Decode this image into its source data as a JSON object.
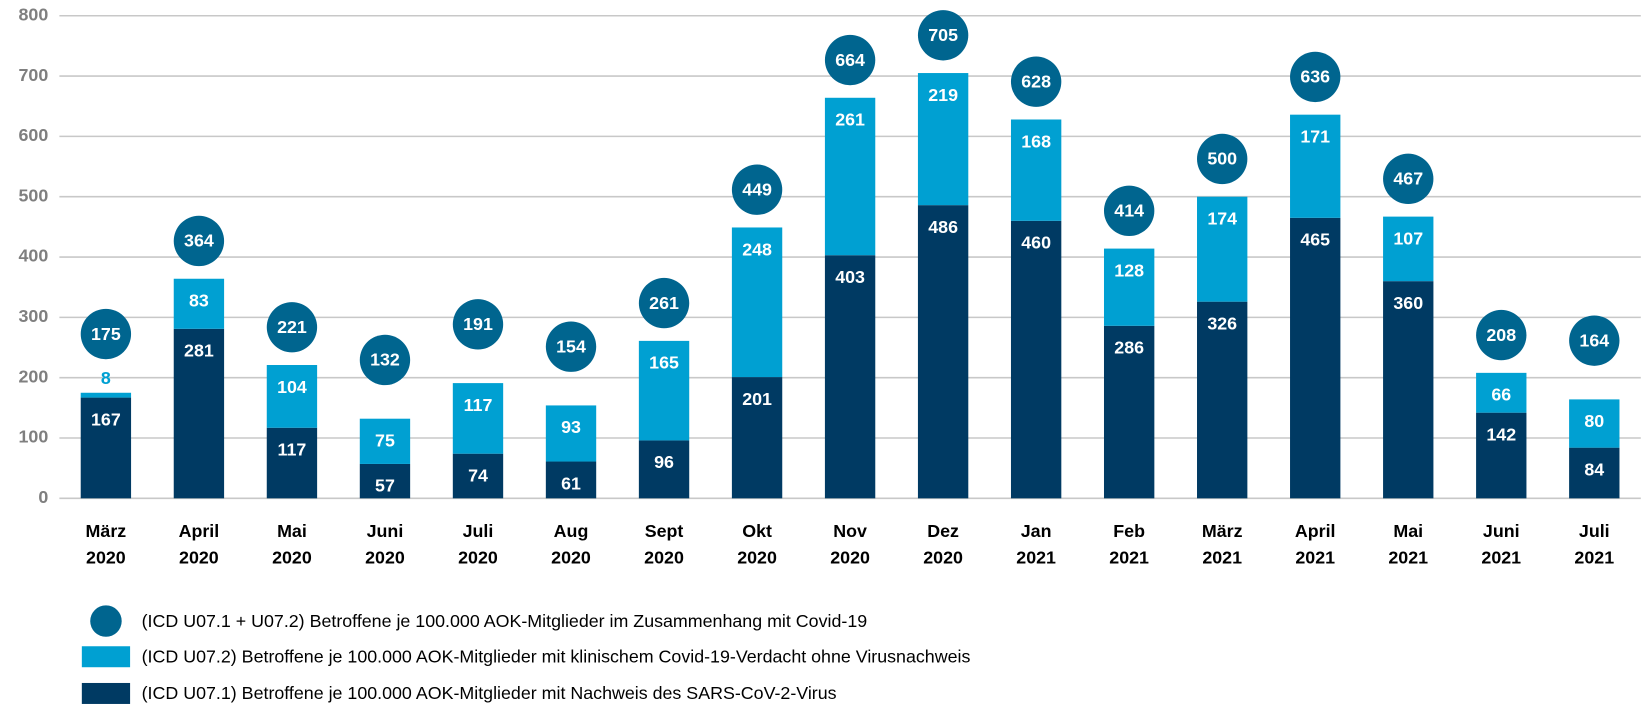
{
  "chart_data": {
    "type": "stacked_bar",
    "categories": [
      "März\n2020",
      "April\n2020",
      "Mai\n2020",
      "Juni\n2020",
      "Juli\n2020",
      "Aug\n2020",
      "Sept\n2020",
      "Okt\n2020",
      "Nov\n2020",
      "Dez\n2020",
      "Jan\n2021",
      "Feb\n2021",
      "März\n2021",
      "April\n2021",
      "Mai\n2021",
      "Juni\n2021",
      "Juli\n2021"
    ],
    "series": [
      {
        "name": "(ICD U07.1) Betroffene je 100.000 AOK-Mitglieder mit Nachweis des SARS-CoV-2-Virus",
        "color": "#003a63",
        "values": [
          167,
          281,
          117,
          57,
          74,
          61,
          96,
          201,
          403,
          486,
          460,
          286,
          326,
          465,
          360,
          142,
          84
        ]
      },
      {
        "name": "(ICD U07.2) Betroffene je 100.000 AOK-Mitglieder mit klinischem Covid-19-Verdacht ohne Virusnachweis",
        "color": "#00a0d2",
        "values": [
          8,
          83,
          104,
          75,
          117,
          93,
          165,
          248,
          261,
          219,
          168,
          128,
          174,
          171,
          107,
          66,
          80
        ]
      }
    ],
    "totals": {
      "name": "(ICD U07.1 + U07.2) Betroffene je 100.000 AOK-Mitglieder im Zusammenhang mit Covid-19",
      "color": "#00658f",
      "values": [
        175,
        364,
        221,
        132,
        191,
        154,
        261,
        449,
        664,
        705,
        628,
        414,
        500,
        636,
        467,
        208,
        164
      ]
    },
    "ylim": [
      0,
      800
    ],
    "yticks": [
      0,
      100,
      200,
      300,
      400,
      500,
      600,
      700,
      800
    ],
    "grid": true
  }
}
